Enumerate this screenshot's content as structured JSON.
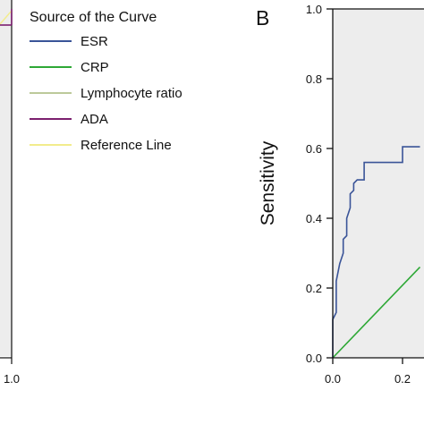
{
  "left_panel": {
    "x_tick_label": "1.0",
    "legend": {
      "title": "Source of the Curve",
      "items": [
        {
          "label": "ESR",
          "color": "#3a5498"
        },
        {
          "label": "CRP",
          "color": "#2ea836"
        },
        {
          "label": "Lymphocyte ratio",
          "color": "#bcc99a"
        },
        {
          "label": "ADA",
          "color": "#7b1f6e"
        },
        {
          "label": "Reference Line",
          "color": "#f2ec8c"
        }
      ]
    }
  },
  "chart_data": {
    "type": "line",
    "panel_label": "B",
    "xlabel": "",
    "ylabel": "Sensitivity",
    "xlim": [
      0,
      0.25
    ],
    "ylim": [
      0,
      1.0
    ],
    "x_ticks": [
      "0.0",
      "0.2"
    ],
    "y_ticks": [
      "0.0",
      "0.2",
      "0.4",
      "0.6",
      "0.8",
      "1.0"
    ],
    "plot_background": "#ededed",
    "series": [
      {
        "name": "ESR",
        "color": "#3a5498",
        "x": [
          0,
          0,
          0.01,
          0.01,
          0.02,
          0.03,
          0.03,
          0.04,
          0.04,
          0.05,
          0.05,
          0.06,
          0.06,
          0.07,
          0.09,
          0.09,
          0.14,
          0.14,
          0.2,
          0.2,
          0.25
        ],
        "y": [
          0,
          0.11,
          0.13,
          0.22,
          0.27,
          0.3,
          0.34,
          0.35,
          0.4,
          0.43,
          0.47,
          0.48,
          0.5,
          0.51,
          0.51,
          0.56,
          0.56,
          0.56,
          0.56,
          0.605,
          0.605
        ]
      },
      {
        "name": "CRP",
        "color": "#2ea836",
        "x": [
          0,
          0.25
        ],
        "y": [
          0,
          0.26
        ]
      }
    ]
  }
}
